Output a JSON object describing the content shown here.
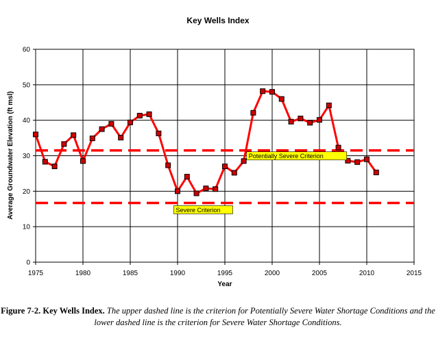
{
  "chart_data": {
    "type": "line",
    "title": "Key Wells Index",
    "xlabel": "Year",
    "ylabel": "Average Groundwater Elevation (ft msl)",
    "xlim": [
      1975,
      2015
    ],
    "ylim": [
      0,
      60
    ],
    "xticks": [
      1975,
      1980,
      1985,
      1990,
      1995,
      2000,
      2005,
      2010,
      2015
    ],
    "yticks": [
      0,
      10,
      20,
      30,
      40,
      50,
      60
    ],
    "grid": true,
    "series": [
      {
        "name": "Key Wells Index",
        "color": "#ff0000",
        "marker_color": "#cc0000",
        "x": [
          1975,
          1976,
          1977,
          1978,
          1979,
          1980,
          1981,
          1982,
          1983,
          1984,
          1985,
          1986,
          1987,
          1988,
          1989,
          1990,
          1991,
          1992,
          1993,
          1994,
          1995,
          1996,
          1997,
          1998,
          1999,
          2000,
          2001,
          2002,
          2003,
          2004,
          2005,
          2006,
          2007,
          2008,
          2009,
          2010,
          2011
        ],
        "y": [
          36.0,
          28.3,
          27.0,
          33.3,
          35.8,
          28.5,
          34.9,
          37.5,
          39.0,
          35.1,
          39.4,
          41.3,
          41.7,
          36.3,
          27.3,
          20.0,
          24.1,
          19.4,
          20.8,
          20.6,
          27.0,
          25.2,
          28.5,
          42.1,
          48.2,
          48.0,
          46.0,
          39.6,
          40.5,
          39.3,
          40.1,
          44.2,
          32.3,
          28.6,
          28.2,
          29.0,
          25.3
        ]
      }
    ],
    "reference_lines": [
      {
        "name": "Potentially Severe Criterion",
        "y": 31.5,
        "color": "#ff0000",
        "label": "Potentially Severe Criterion",
        "label_x": 1997.3,
        "label_anchor": "above"
      },
      {
        "name": "Severe Criterion",
        "y": 16.7,
        "color": "#ff0000",
        "label": "Severe Criterion",
        "label_x": 1989.6,
        "label_anchor": "below"
      }
    ],
    "label_box_color": "#ffff00"
  },
  "caption": {
    "label": "Figure 7-2.  Key Wells Index.",
    "text": " The upper dashed line is the criterion for Potentially Severe Water Shortage Conditions and the lower dashed line is the criterion for Severe Water Shortage Conditions."
  }
}
